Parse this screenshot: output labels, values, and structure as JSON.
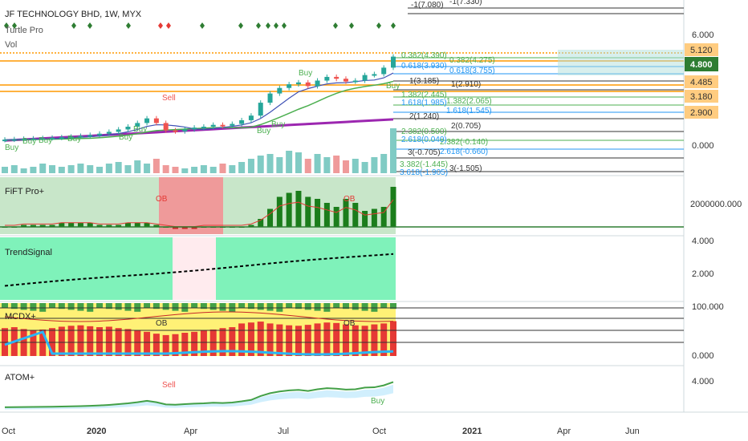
{
  "header": {
    "symbol": "JF TECHNOLOGY BHD, 1W, MYX",
    "indicator_turtle": "Turtle Pro",
    "indicator_vol": "Vol"
  },
  "colors": {
    "up": "#26a69a",
    "down": "#ef5350",
    "green_dark": "#1b7d1b",
    "ma_purple": "#9c27b0",
    "ma_green": "#4caf50",
    "ma_blue": "#3f51b5",
    "fib_band": "#ffcc80",
    "price_badge": "#2e7d32",
    "trend_fill": "#69f0ae",
    "fift_fill": "#a5d6a7",
    "fift_red": "#ef9a9a"
  },
  "chart_data": [
    {
      "type": "candlestick",
      "title": "JF TECHNOLOGY BHD, 1W, MYX",
      "series_name": "Turtle Pro",
      "price_axis_ticks": [
        "6.000",
        "0.000"
      ],
      "price_labels": [
        "5.120",
        "4.800",
        "4.485",
        "3.180",
        "2.900"
      ],
      "last_price": "4.800",
      "close_trajectory": [
        0.3,
        0.32,
        0.34,
        0.36,
        0.38,
        0.4,
        0.43,
        0.46,
        0.5,
        0.55,
        0.62,
        0.72,
        0.85,
        1.0,
        1.2,
        1.45,
        1.2,
        0.8,
        0.75,
        0.85,
        0.95,
        1.0,
        1.1,
        1.05,
        1.15,
        1.35,
        1.6,
        2.3,
        2.8,
        3.1,
        3.3,
        3.4,
        3.2,
        3.5,
        3.7,
        3.6,
        3.45,
        3.5,
        3.8,
        3.85,
        4.2,
        4.8
      ],
      "fib_levels_upper": [
        "-1(7.080)",
        "-1(7.330)",
        "0.382(4.390)",
        "0.382(4.275)",
        "0.618(3.930)",
        "0.618(3.755)",
        "1(3.185)",
        "1(2.910)",
        "1.382(2.445)",
        "1.382(2.065)",
        "1.618(1.985)",
        "1.618(1.545)",
        "2(1.240)",
        "2(0.705)"
      ],
      "fib_levels_lower": [
        "2.382(0.500)",
        "2.382(-0.140)",
        "2.618(0.040)",
        "2.618(-0.660)",
        "3(-0.705)",
        "3(-1.505)",
        "3.382(-1.445)",
        "3.618(-1.905)"
      ],
      "signals": [
        "Buy",
        "Buy",
        "Buy",
        "Buy",
        "Buy",
        "Sell",
        "Buy",
        "Buy",
        "Buy",
        "Buy"
      ]
    },
    {
      "type": "bar",
      "title": "FiFT Pro+",
      "axis_ticks": [
        "2000000.000"
      ],
      "annotations": [
        "OB",
        "OB"
      ]
    },
    {
      "type": "line",
      "title": "TrendSignal",
      "axis_ticks": [
        "4.000",
        "2.000"
      ]
    },
    {
      "type": "bar",
      "title": "MCDX+",
      "axis_ticks": [
        "100.000",
        "0.000"
      ],
      "annotations": [
        "OB",
        "OB"
      ]
    },
    {
      "type": "line",
      "title": "ATOM+",
      "axis_ticks": [
        "4.000"
      ],
      "signals": [
        "Sell",
        "Buy"
      ]
    }
  ],
  "time_axis": [
    "Oct",
    "2020",
    "Apr",
    "Jul",
    "Oct",
    "2021",
    "Apr",
    "Jun"
  ]
}
